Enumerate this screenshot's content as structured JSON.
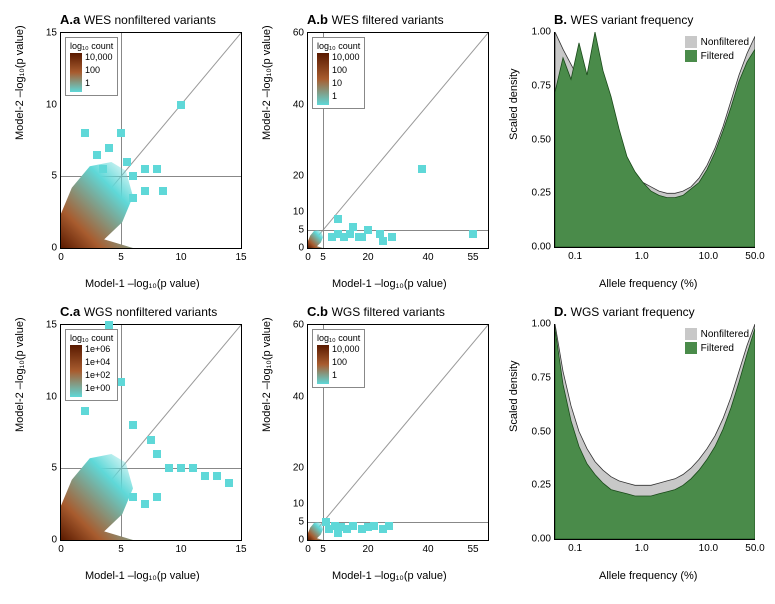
{
  "colors": {
    "cyan": "#5fd8d8",
    "brown_dark": "#5a1a00",
    "brown_mid": "#a85c2f",
    "green_fill": "#4a8b4a",
    "grey_fill": "#c8c8c8",
    "grid": "#999999"
  },
  "panels": {
    "Aa": {
      "letter": "A.a",
      "title": "WES nonfiltered variants",
      "xlabel": "Model-1 –log₁₀(p value)",
      "ylabel": "Model-2 –log₁₀(p value)",
      "xlim": [
        0,
        15
      ],
      "ylim": [
        0,
        15
      ],
      "xticks": [
        0,
        5,
        10,
        15
      ],
      "yticks": [
        0,
        5,
        10,
        15
      ],
      "ref_x": 5,
      "ref_y": 5,
      "legend_title": "log₁₀ count",
      "legend_labels": [
        "10,000",
        "100",
        "1"
      ]
    },
    "Ab": {
      "letter": "A.b",
      "title": "WES filtered variants",
      "xlabel": "Model-1 –log₁₀(p value)",
      "ylabel": "Model-2 –log₁₀(p value)",
      "xlim": [
        0,
        60
      ],
      "ylim": [
        0,
        60
      ],
      "xticks": [
        0,
        5,
        20,
        40,
        55
      ],
      "xtick_labels": [
        "0",
        "5",
        "20",
        "40",
        "55"
      ],
      "yticks": [
        0,
        5,
        10,
        20,
        40,
        60
      ],
      "ytick_labels": [
        "0",
        "5",
        "10",
        "20",
        "40",
        "60"
      ],
      "ref_x": 5,
      "ref_y": 5,
      "legend_title": "log₁₀ count",
      "legend_labels": [
        "10,000",
        "100",
        "10",
        "1"
      ]
    },
    "Ca": {
      "letter": "C.a",
      "title": "WGS nonfiltered variants",
      "xlabel": "Model-1 –log₁₀(p value)",
      "ylabel": "Model-2 –log₁₀(p value)",
      "xlim": [
        0,
        15
      ],
      "ylim": [
        0,
        15
      ],
      "xticks": [
        0,
        5,
        10,
        15
      ],
      "yticks": [
        0,
        5,
        10,
        15
      ],
      "ref_x": 5,
      "ref_y": 5,
      "legend_title": "log₁₀ count",
      "legend_labels": [
        "1e+06",
        "1e+04",
        "1e+02",
        "1e+00"
      ]
    },
    "Cb": {
      "letter": "C.b",
      "title": "WGS filtered variants",
      "xlabel": "Model-1 –log₁₀(p value)",
      "ylabel": "Model-2 –log₁₀(p value)",
      "xlim": [
        0,
        60
      ],
      "ylim": [
        0,
        60
      ],
      "xticks": [
        0,
        5,
        20,
        40,
        55
      ],
      "xtick_labels": [
        "0",
        "5",
        "20",
        "40",
        "55"
      ],
      "yticks": [
        0,
        5,
        10,
        20,
        40,
        60
      ],
      "ytick_labels": [
        "0",
        "5",
        "10",
        "20",
        "40",
        "60"
      ],
      "ref_x": 5,
      "ref_y": 5,
      "legend_title": "log₁₀ count",
      "legend_labels": [
        "10,000",
        "100",
        "1"
      ]
    },
    "B": {
      "letter": "B.",
      "title": "WES variant frequency",
      "xlabel": "Allele frequency (%)",
      "ylabel": "Scaled density",
      "xlog": true,
      "xlim": [
        0.05,
        50
      ],
      "xticks_log": [
        0.1,
        1.0,
        10.0,
        50.0
      ],
      "xtick_labels": [
        "0.1",
        "1.0",
        "10.0",
        "50.0"
      ],
      "yticks": [
        0,
        0.25,
        0.5,
        0.75,
        1.0
      ],
      "ytick_labels": [
        "0.00",
        "0.25",
        "0.50",
        "0.75",
        "1.00"
      ],
      "legend": [
        {
          "label": "Nonfiltered",
          "color": "#c8c8c8"
        },
        {
          "label": "Filtered",
          "color": "#4a8b4a"
        }
      ],
      "nonfiltered": [
        1.0,
        0.92,
        0.85,
        0.78,
        0.7,
        0.62,
        0.55,
        0.48,
        0.42,
        0.38,
        0.33,
        0.3,
        0.28,
        0.26,
        0.25,
        0.25,
        0.26,
        0.28,
        0.32,
        0.38,
        0.46,
        0.56,
        0.68,
        0.8,
        0.9,
        0.98
      ],
      "filtered": [
        0.72,
        0.88,
        0.78,
        0.95,
        0.8,
        1.0,
        0.82,
        0.7,
        0.55,
        0.42,
        0.35,
        0.3,
        0.26,
        0.24,
        0.23,
        0.23,
        0.24,
        0.27,
        0.3,
        0.36,
        0.44,
        0.54,
        0.65,
        0.77,
        0.86,
        0.92
      ]
    },
    "D": {
      "letter": "D.",
      "title": "WGS variant frequency",
      "xlabel": "Allele frequency (%)",
      "ylabel": "Scaled density",
      "xlog": true,
      "xlim": [
        0.05,
        50
      ],
      "xticks_log": [
        0.1,
        1.0,
        10.0,
        50.0
      ],
      "xtick_labels": [
        "0.1",
        "1.0",
        "10.0",
        "50.0"
      ],
      "yticks": [
        0,
        0.25,
        0.5,
        0.75,
        1.0
      ],
      "ytick_labels": [
        "0.00",
        "0.25",
        "0.50",
        "0.75",
        "1.00"
      ],
      "legend": [
        {
          "label": "Nonfiltered",
          "color": "#c8c8c8"
        },
        {
          "label": "Filtered",
          "color": "#4a8b4a"
        }
      ],
      "nonfiltered": [
        1.0,
        0.78,
        0.62,
        0.5,
        0.42,
        0.36,
        0.32,
        0.29,
        0.27,
        0.26,
        0.25,
        0.25,
        0.25,
        0.26,
        0.27,
        0.28,
        0.3,
        0.33,
        0.37,
        0.42,
        0.48,
        0.56,
        0.66,
        0.78,
        0.9,
        1.0
      ],
      "filtered": [
        0.98,
        0.72,
        0.55,
        0.43,
        0.35,
        0.3,
        0.26,
        0.23,
        0.22,
        0.21,
        0.2,
        0.2,
        0.2,
        0.21,
        0.22,
        0.23,
        0.25,
        0.28,
        0.32,
        0.37,
        0.43,
        0.51,
        0.61,
        0.73,
        0.86,
        0.98
      ]
    }
  }
}
